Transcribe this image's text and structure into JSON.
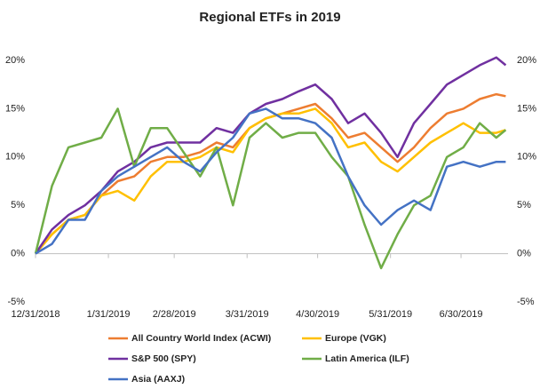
{
  "chart_data": {
    "type": "line",
    "title": "Regional ETFs in 2019",
    "x": [
      "2018-12-31",
      "2019-01-07",
      "2019-01-14",
      "2019-01-21",
      "2019-01-28",
      "2019-02-04",
      "2019-02-11",
      "2019-02-18",
      "2019-02-25",
      "2019-03-04",
      "2019-03-11",
      "2019-03-18",
      "2019-03-25",
      "2019-04-01",
      "2019-04-08",
      "2019-04-15",
      "2019-04-22",
      "2019-04-29",
      "2019-05-06",
      "2019-05-13",
      "2019-05-20",
      "2019-05-27",
      "2019-06-03",
      "2019-06-10",
      "2019-06-17",
      "2019-06-24",
      "2019-07-01",
      "2019-07-08",
      "2019-07-15",
      "2019-07-19"
    ],
    "series": [
      {
        "name": "All Country World Index (ACWI)",
        "color": "#ed7d31",
        "values": [
          0,
          2,
          3.5,
          4,
          6,
          7.5,
          8,
          9.5,
          10,
          10,
          10.5,
          11.5,
          11,
          13,
          14,
          14.5,
          15,
          15.5,
          14,
          12,
          12.5,
          11,
          9.5,
          11,
          13,
          14.5,
          15,
          16,
          16.5,
          16.3
        ]
      },
      {
        "name": "Europe (VGK)",
        "color": "#ffc000",
        "values": [
          0,
          2,
          3.5,
          4,
          6,
          6.5,
          5.5,
          8,
          9.5,
          9.5,
          10,
          11,
          10.5,
          13,
          14,
          14.5,
          14.5,
          15,
          13.5,
          11,
          11.5,
          9.5,
          8.5,
          10,
          11.5,
          12.5,
          13.5,
          12.5,
          12.5,
          12.8
        ]
      },
      {
        "name": "S&P 500 (SPY)",
        "color": "#7030a0",
        "values": [
          0,
          2.5,
          4,
          5,
          6.5,
          8.5,
          9.5,
          11,
          11.5,
          11.5,
          11.5,
          13,
          12.5,
          14.5,
          15.5,
          16,
          16.8,
          17.5,
          16,
          13.5,
          14.5,
          12.5,
          10,
          13.5,
          15.5,
          17.5,
          18.5,
          19.5,
          20.3,
          19.5
        ]
      },
      {
        "name": "Latin America (ILF)",
        "color": "#70ad47",
        "values": [
          0,
          7,
          11,
          11.5,
          12,
          15,
          9,
          13,
          13,
          10.5,
          8,
          11,
          5,
          12,
          13.5,
          12,
          12.5,
          12.5,
          10,
          8,
          3,
          -1.5,
          2,
          5,
          6,
          10,
          11,
          13.5,
          12,
          12.8
        ]
      },
      {
        "name": "Asia (AAXJ)",
        "color": "#4472c4",
        "values": [
          0,
          1,
          3.5,
          3.5,
          6.5,
          8,
          9,
          10,
          11,
          9.5,
          8.5,
          10.5,
          12,
          14.5,
          15,
          14,
          14,
          13.5,
          12,
          8,
          5,
          3,
          4.5,
          5.5,
          4.5,
          9,
          9.5,
          9,
          9.5,
          9.5
        ]
      }
    ],
    "xlim": [
      "2018-12-31",
      "2019-07-20"
    ],
    "xticks": [
      {
        "value": "2018-12-31",
        "label": "12/31/2018"
      },
      {
        "value": "2019-01-31",
        "label": "1/31/2019"
      },
      {
        "value": "2019-02-28",
        "label": "2/28/2019"
      },
      {
        "value": "2019-03-31",
        "label": "3/31/2019"
      },
      {
        "value": "2019-04-30",
        "label": "4/30/2019"
      },
      {
        "value": "2019-05-31",
        "label": "5/31/2019"
      },
      {
        "value": "2019-06-30",
        "label": "6/30/2019"
      }
    ],
    "ylim": [
      -5,
      20
    ],
    "yticks": [
      {
        "value": -5,
        "label": "-5%"
      },
      {
        "value": 0,
        "label": "0%"
      },
      {
        "value": 5,
        "label": "5%"
      },
      {
        "value": 10,
        "label": "10%"
      },
      {
        "value": 15,
        "label": "15%"
      },
      {
        "value": 20,
        "label": "20%"
      }
    ],
    "y2lim": [
      -5,
      20
    ],
    "y2ticks": [
      {
        "value": -5,
        "label": "-5%"
      },
      {
        "value": 0,
        "label": "0%"
      },
      {
        "value": 5,
        "label": "5%"
      },
      {
        "value": 10,
        "label": "10%"
      },
      {
        "value": 15,
        "label": "15%"
      },
      {
        "value": 20,
        "label": "20%"
      }
    ]
  }
}
